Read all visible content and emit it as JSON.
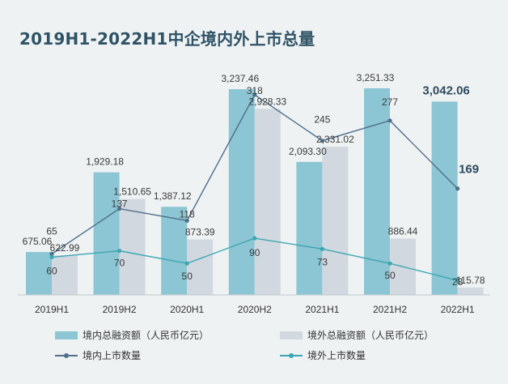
{
  "title": "2019H1-2022H1中企境内外上市总量",
  "colors": {
    "domestic_bar": "#8cc5d3",
    "overseas_bar": "#d1d8df",
    "domestic_line": "#4f6f8a",
    "overseas_line": "#3aa7b2"
  },
  "chart_data": {
    "type": "bar",
    "categories": [
      "2019H1",
      "2019H2",
      "2020H1",
      "2020H2",
      "2021H1",
      "2021H2",
      "2022H1"
    ],
    "series": [
      {
        "name": "境内总融资额（人民币亿元）",
        "type": "bar",
        "values": [
          675.06,
          1929.18,
          1387.12,
          3237.46,
          2093.3,
          3251.33,
          3042.06
        ],
        "labels": [
          "675.06",
          "1,929.18",
          "1,387.12",
          "3,237.46",
          "2,093.30",
          "3,251.33",
          "3,042.06"
        ]
      },
      {
        "name": "境外总融资额（人民币亿元）",
        "type": "bar",
        "values": [
          622.99,
          1510.65,
          873.39,
          2928.33,
          2331.02,
          886.44,
          115.78
        ],
        "labels": [
          "622.99",
          "1,510.65",
          "873.39",
          "2,928.33",
          "2,331.02",
          "886.44",
          "115.78"
        ]
      },
      {
        "name": "境内上市数量",
        "type": "line",
        "values": [
          65,
          137,
          118,
          318,
          245,
          277,
          169
        ]
      },
      {
        "name": "境外上市数量",
        "type": "line",
        "values": [
          60,
          70,
          50,
          90,
          73,
          50,
          23
        ]
      }
    ],
    "legend": "bottom"
  }
}
